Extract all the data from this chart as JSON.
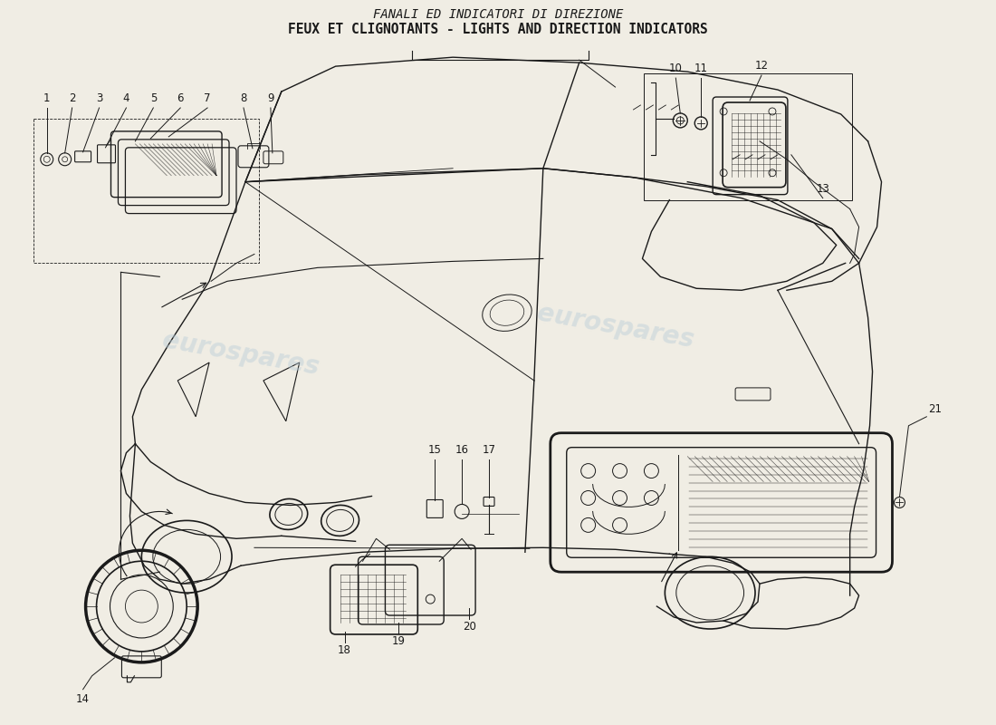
{
  "title_line1": "FANALI ED INDICATORI DI DIREZIONE",
  "title_line2": "FEUX ET CLIGNOTANTS - LIGHTS AND DIRECTION INDICATORS",
  "background_color": "#f0ede4",
  "watermark_text1": "eurospares",
  "watermark_text2": "eurospares",
  "watermark_color": "#b8ccd8",
  "watermark_alpha": 0.45,
  "title_fontsize": 10,
  "title_color": "#1a1a1a",
  "part_label_fontsize": 8.5,
  "line_color": "#1a1a1a",
  "lw": 1.0
}
